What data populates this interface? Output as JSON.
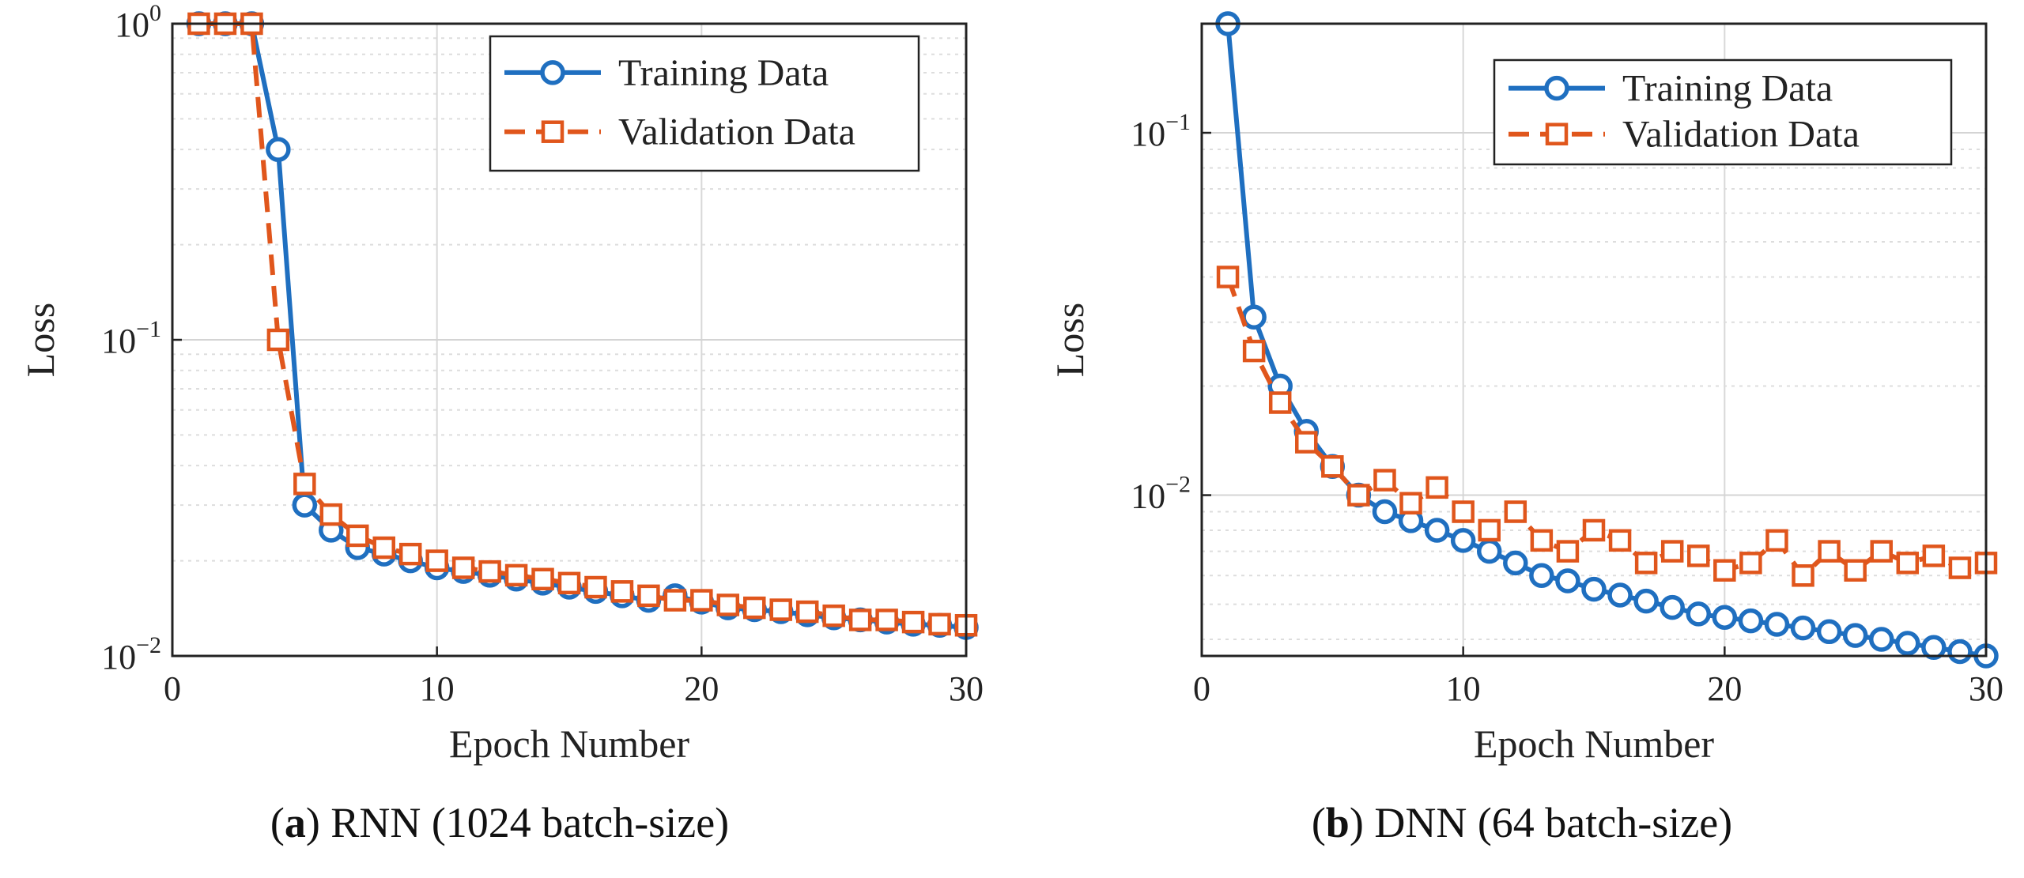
{
  "captions": {
    "a": {
      "letter": "a",
      "text": " RNN (1024 batch-size)"
    },
    "b": {
      "letter": "b",
      "text": " DNN (64 batch-size)"
    }
  },
  "colors": {
    "training": "#1f6fc0",
    "validation": "#e0561c"
  },
  "chart_data": [
    {
      "type": "line",
      "xlabel": "Epoch Number",
      "ylabel": "Loss",
      "xlim": [
        0,
        30
      ],
      "ylim": [
        0.01,
        1
      ],
      "yscale": "log",
      "xticks": [
        0,
        10,
        20,
        30
      ],
      "yticks": [
        {
          "value": 1,
          "base": "10",
          "exp": "0"
        },
        {
          "value": 0.1,
          "base": "10",
          "exp": "−1"
        },
        {
          "value": 0.01,
          "base": "10",
          "exp": "−2"
        }
      ],
      "grid": true,
      "legend": {
        "position": "top-right"
      },
      "x": [
        1,
        2,
        3,
        4,
        5,
        6,
        7,
        8,
        9,
        10,
        11,
        12,
        13,
        14,
        15,
        16,
        17,
        18,
        19,
        20,
        21,
        22,
        23,
        24,
        25,
        26,
        27,
        28,
        29,
        30
      ],
      "series": [
        {
          "name": "Training Data",
          "marker": "circle",
          "line": "solid",
          "color": "#1f6fc0",
          "values": [
            1.0,
            1.0,
            1.0,
            0.4,
            0.03,
            0.025,
            0.022,
            0.021,
            0.02,
            0.019,
            0.0185,
            0.018,
            0.0175,
            0.017,
            0.0165,
            0.016,
            0.0155,
            0.015,
            0.0155,
            0.0148,
            0.0142,
            0.014,
            0.0138,
            0.0135,
            0.0132,
            0.013,
            0.0128,
            0.0126,
            0.0125,
            0.0123
          ]
        },
        {
          "name": "Validation Data",
          "marker": "square",
          "line": "dashed",
          "color": "#e0561c",
          "values": [
            1.0,
            1.0,
            1.0,
            0.1,
            0.035,
            0.028,
            0.024,
            0.022,
            0.021,
            0.02,
            0.019,
            0.0185,
            0.018,
            0.0175,
            0.017,
            0.0165,
            0.016,
            0.0155,
            0.015,
            0.015,
            0.0145,
            0.0142,
            0.014,
            0.0138,
            0.0134,
            0.013,
            0.013,
            0.0128,
            0.0126,
            0.0125
          ]
        }
      ]
    },
    {
      "type": "line",
      "xlabel": "Epoch Number",
      "ylabel": "Loss",
      "xlim": [
        0,
        30
      ],
      "ylim": [
        0.0036,
        0.2
      ],
      "yscale": "log",
      "xticks": [
        0,
        10,
        20,
        30
      ],
      "yticks": [
        {
          "value": 0.1,
          "base": "10",
          "exp": "−1"
        },
        {
          "value": 0.01,
          "base": "10",
          "exp": "−2"
        }
      ],
      "grid": true,
      "legend": {
        "position": "top-right"
      },
      "x": [
        1,
        2,
        3,
        4,
        5,
        6,
        7,
        8,
        9,
        10,
        11,
        12,
        13,
        14,
        15,
        16,
        17,
        18,
        19,
        20,
        21,
        22,
        23,
        24,
        25,
        26,
        27,
        28,
        29,
        30
      ],
      "series": [
        {
          "name": "Training Data",
          "marker": "circle",
          "line": "solid",
          "color": "#1f6fc0",
          "values": [
            0.2,
            0.031,
            0.02,
            0.015,
            0.012,
            0.01,
            0.009,
            0.0085,
            0.008,
            0.0075,
            0.007,
            0.0065,
            0.006,
            0.0058,
            0.0055,
            0.0053,
            0.0051,
            0.0049,
            0.0047,
            0.0046,
            0.0045,
            0.0044,
            0.0043,
            0.0042,
            0.0041,
            0.004,
            0.0039,
            0.0038,
            0.0037,
            0.0036
          ]
        },
        {
          "name": "Validation Data",
          "marker": "square",
          "line": "dashed",
          "color": "#e0561c",
          "values": [
            0.04,
            0.025,
            0.018,
            0.014,
            0.012,
            0.01,
            0.011,
            0.0095,
            0.0105,
            0.009,
            0.008,
            0.009,
            0.0075,
            0.007,
            0.008,
            0.0075,
            0.0065,
            0.007,
            0.0068,
            0.0062,
            0.0065,
            0.0075,
            0.006,
            0.007,
            0.0062,
            0.007,
            0.0065,
            0.0068,
            0.0063,
            0.0065
          ]
        }
      ]
    }
  ]
}
